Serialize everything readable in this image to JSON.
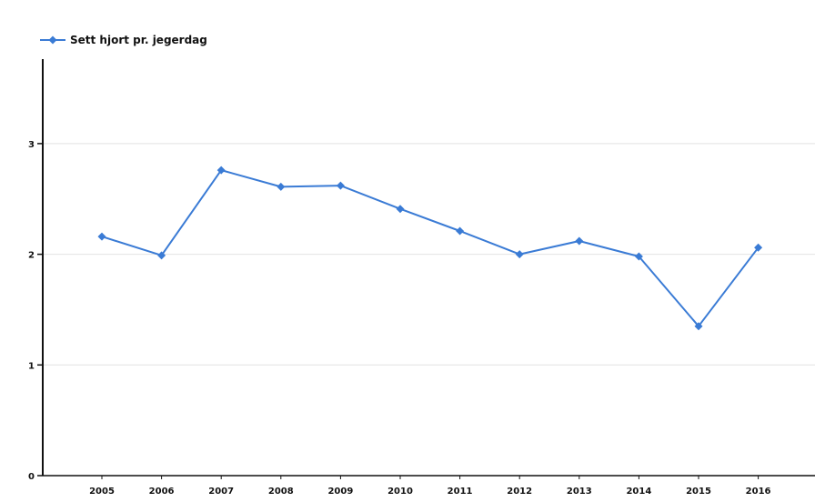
{
  "chart_data": {
    "type": "line",
    "x": [
      "2005",
      "2006",
      "2007",
      "2008",
      "2009",
      "2010",
      "2011",
      "2012",
      "2013",
      "2014",
      "2015",
      "2016"
    ],
    "series": [
      {
        "name": "Sett hjort pr. jegerdag",
        "color": "#3a7bd5",
        "values": [
          2.16,
          1.99,
          2.76,
          2.61,
          2.62,
          2.41,
          2.21,
          2.0,
          2.12,
          1.98,
          1.35,
          2.06
        ]
      }
    ],
    "ylim": [
      0,
      3.75
    ],
    "yticks": [
      "0",
      "1",
      "2",
      "3"
    ],
    "grid": true,
    "legend": "top-left",
    "marker": "diamond-icon"
  }
}
